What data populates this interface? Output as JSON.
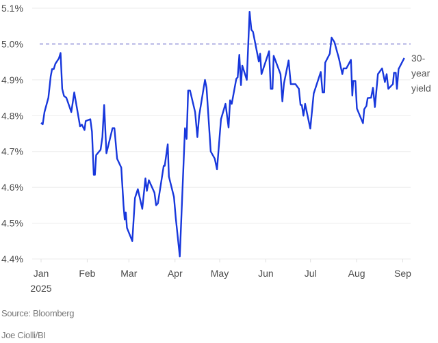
{
  "chart_data": {
    "type": "line",
    "title": "",
    "xlabel": "",
    "ylabel": "",
    "x_unit": "days since Jan 1, 2025",
    "ylim": [
      4.4,
      5.1
    ],
    "xlim": [
      0,
      243
    ],
    "grid": true,
    "yticks": [
      {
        "value": 5.1,
        "label": "5.1%"
      },
      {
        "value": 5.0,
        "label": "5.0%"
      },
      {
        "value": 4.9,
        "label": "4.9%"
      },
      {
        "value": 4.8,
        "label": "4.8%"
      },
      {
        "value": 4.7,
        "label": "4.7%"
      },
      {
        "value": 4.6,
        "label": "4.6%"
      },
      {
        "value": 4.5,
        "label": "4.5%"
      },
      {
        "value": 4.4,
        "label": "4.4%"
      }
    ],
    "xticks": [
      {
        "day": 0,
        "label": "Jan",
        "sublabel": "2025"
      },
      {
        "day": 31,
        "label": "Feb"
      },
      {
        "day": 59,
        "label": "Mar"
      },
      {
        "day": 90,
        "label": "Apr"
      },
      {
        "day": 120,
        "label": "May"
      },
      {
        "day": 151,
        "label": "Jun"
      },
      {
        "day": 181,
        "label": "Jul"
      },
      {
        "day": 212,
        "label": "Aug"
      },
      {
        "day": 243,
        "label": "Sep"
      }
    ],
    "reference_line": {
      "value": 5.0,
      "style": "dashed",
      "color": "#8f8fd8"
    },
    "series": [
      {
        "name": "30-year yield",
        "label_lines": [
          "30-",
          "year",
          "yield"
        ],
        "color": "#1737dc",
        "points": [
          [
            0,
            4.78
          ],
          [
            1.1,
            4.776
          ],
          [
            2.3,
            4.81
          ],
          [
            4.9,
            4.85
          ],
          [
            6.5,
            4.91
          ],
          [
            7.4,
            4.93
          ],
          [
            8.5,
            4.93
          ],
          [
            9.6,
            4.945
          ],
          [
            12,
            4.96
          ],
          [
            13.1,
            4.975
          ],
          [
            14.2,
            4.875
          ],
          [
            15.4,
            4.855
          ],
          [
            17,
            4.85
          ],
          [
            20.3,
            4.81
          ],
          [
            22.3,
            4.865
          ],
          [
            26.2,
            4.77
          ],
          [
            27.4,
            4.775
          ],
          [
            29.2,
            4.76
          ],
          [
            30,
            4.785
          ],
          [
            33.1,
            4.79
          ],
          [
            34.2,
            4.755
          ],
          [
            35.4,
            4.635
          ],
          [
            36.2,
            4.635
          ],
          [
            37,
            4.69
          ],
          [
            40,
            4.705
          ],
          [
            41.2,
            4.74
          ],
          [
            42.4,
            4.83
          ],
          [
            43.9,
            4.695
          ],
          [
            48,
            4.765
          ],
          [
            49.3,
            4.765
          ],
          [
            51.1,
            4.68
          ],
          [
            53.9,
            4.655
          ],
          [
            55.4,
            4.55
          ],
          [
            56.2,
            4.51
          ],
          [
            56.9,
            4.53
          ],
          [
            57.7,
            4.487
          ],
          [
            61.3,
            4.45
          ],
          [
            63.1,
            4.57
          ],
          [
            65,
            4.595
          ],
          [
            68,
            4.54
          ],
          [
            70.1,
            4.625
          ],
          [
            71.1,
            4.59
          ],
          [
            72.4,
            4.62
          ],
          [
            76.2,
            4.585
          ],
          [
            77.3,
            4.55
          ],
          [
            78.5,
            4.555
          ],
          [
            82.4,
            4.66
          ],
          [
            83.1,
            4.66
          ],
          [
            85.1,
            4.72
          ],
          [
            85.9,
            4.63
          ],
          [
            89.3,
            4.573
          ],
          [
            90.5,
            4.515
          ],
          [
            93.2,
            4.407
          ],
          [
            96.7,
            4.765
          ],
          [
            97.8,
            4.735
          ],
          [
            98.8,
            4.87
          ],
          [
            100.1,
            4.87
          ],
          [
            103.5,
            4.81
          ],
          [
            105,
            4.74
          ],
          [
            106.2,
            4.8
          ],
          [
            110.1,
            4.9
          ],
          [
            111.2,
            4.878
          ],
          [
            114,
            4.7
          ],
          [
            116.7,
            4.68
          ],
          [
            118.2,
            4.65
          ],
          [
            120.9,
            4.79
          ],
          [
            123.9,
            4.833
          ],
          [
            126,
            4.767
          ],
          [
            127,
            4.843
          ],
          [
            128.1,
            4.833
          ],
          [
            131.2,
            4.903
          ],
          [
            132.1,
            4.907
          ],
          [
            133.2,
            4.97
          ],
          [
            134.3,
            4.885
          ],
          [
            135.2,
            4.94
          ],
          [
            138.2,
            4.9
          ],
          [
            140.1,
            5.09
          ],
          [
            141.3,
            5.04
          ],
          [
            142.4,
            5.034
          ],
          [
            146.3,
            4.951
          ],
          [
            147.2,
            4.973
          ],
          [
            148.1,
            4.916
          ],
          [
            153.2,
            4.98
          ],
          [
            154.3,
            4.875
          ],
          [
            155.5,
            4.875
          ],
          [
            156.3,
            4.967
          ],
          [
            160.9,
            4.916
          ],
          [
            162.1,
            4.84
          ],
          [
            163.2,
            4.89
          ],
          [
            166.3,
            4.954
          ],
          [
            167.8,
            4.888
          ],
          [
            170.9,
            4.888
          ],
          [
            173.2,
            4.875
          ],
          [
            174.3,
            4.83
          ],
          [
            175.2,
            4.83
          ],
          [
            176.3,
            4.8
          ],
          [
            177.4,
            4.833
          ],
          [
            180.9,
            4.764
          ],
          [
            183.2,
            4.862
          ],
          [
            187.9,
            4.922
          ],
          [
            189.1,
            4.865
          ],
          [
            190.2,
            4.865
          ],
          [
            190.9,
            4.948
          ],
          [
            194,
            4.973
          ],
          [
            195.2,
            5.018
          ],
          [
            197.1,
            5.005
          ],
          [
            200.1,
            4.96
          ],
          [
            202.4,
            4.916
          ],
          [
            203.2,
            4.932
          ],
          [
            205.1,
            4.932
          ],
          [
            208.2,
            4.956
          ],
          [
            209.1,
            4.856
          ],
          [
            209.7,
            4.897
          ],
          [
            211.2,
            4.897
          ],
          [
            212.2,
            4.82
          ],
          [
            216.3,
            4.779
          ],
          [
            217.1,
            4.818
          ],
          [
            218.6,
            4.827
          ],
          [
            219.4,
            4.849
          ],
          [
            221.7,
            4.85
          ],
          [
            223,
            4.878
          ],
          [
            224.3,
            4.824
          ],
          [
            226.3,
            4.916
          ],
          [
            229.1,
            4.932
          ],
          [
            231,
            4.894
          ],
          [
            232.2,
            4.916
          ],
          [
            233.3,
            4.875
          ],
          [
            236.4,
            4.888
          ],
          [
            237.1,
            4.92
          ],
          [
            238.3,
            4.92
          ],
          [
            239.1,
            4.875
          ],
          [
            240.2,
            4.93
          ],
          [
            244,
            4.961
          ]
        ]
      }
    ]
  },
  "footer": {
    "source": "Source: Bloomberg",
    "credit": "Joe Ciolli/BI"
  }
}
